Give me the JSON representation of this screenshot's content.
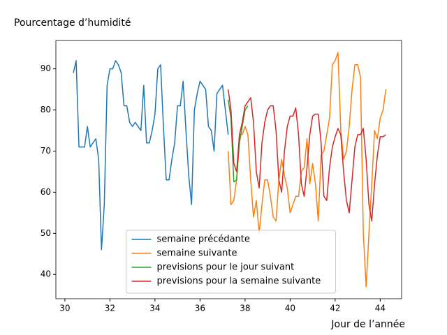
{
  "chart_data": {
    "type": "line",
    "title": "Pourcentage d’humidité",
    "x_label": "Jour de l’année",
    "xlim": [
      29.6,
      44.95
    ],
    "xticks": [
      30,
      32,
      34,
      36,
      38,
      40,
      42,
      44
    ],
    "ylim": [
      34.1,
      96.9
    ],
    "yticks": [
      40,
      50,
      60,
      70,
      80,
      90
    ],
    "grid": false,
    "legend_position": "lower center",
    "series": [
      {
        "name": "semaine précédante",
        "color": "#1f77b4",
        "x": [
          30.375,
          30.5,
          30.625,
          30.75,
          30.875,
          31,
          31.125,
          31.25,
          31.375,
          31.5,
          31.625,
          31.75,
          31.875,
          32,
          32.125,
          32.25,
          32.375,
          32.5,
          32.625,
          32.75,
          32.875,
          33,
          33.125,
          33.25,
          33.375,
          33.5,
          33.625,
          33.75,
          33.875,
          34,
          34.125,
          34.25,
          34.375,
          34.5,
          34.625,
          34.75,
          34.875,
          35,
          35.125,
          35.25,
          35.375,
          35.5,
          35.625,
          35.75,
          35.875,
          36,
          36.125,
          36.25,
          36.375,
          36.5,
          36.625,
          36.75,
          36.875,
          37,
          37.125,
          37.25
        ],
        "values": [
          89,
          92,
          71,
          71,
          71,
          76,
          71,
          72,
          73,
          68,
          46,
          57,
          86,
          90,
          90,
          92,
          91,
          89,
          81,
          81,
          77,
          76,
          77,
          76,
          75,
          86,
          72,
          72,
          75,
          79,
          90,
          91,
          76,
          63,
          63,
          68,
          72,
          81,
          81,
          87,
          75,
          64,
          57,
          80,
          84,
          87,
          86,
          85,
          76,
          75,
          70,
          84,
          85,
          86,
          80,
          74
        ]
      },
      {
        "name": "semaine suivante",
        "color": "#ff7f0e",
        "x": [
          37.25,
          37.375,
          37.5,
          37.625,
          37.75,
          37.875,
          38,
          38.125,
          38.25,
          38.375,
          38.5,
          38.625,
          38.75,
          38.875,
          39,
          39.125,
          39.25,
          39.375,
          39.5,
          39.625,
          39.75,
          39.875,
          40,
          40.125,
          40.25,
          40.375,
          40.5,
          40.625,
          40.75,
          40.875,
          41,
          41.125,
          41.25,
          41.375,
          41.5,
          41.625,
          41.75,
          41.875,
          42,
          42.125,
          42.25,
          42.375,
          42.5,
          42.625,
          42.75,
          42.875,
          43,
          43.125,
          43.25,
          43.375,
          43.5,
          43.625,
          43.75,
          43.875,
          44,
          44.125,
          44.25
        ],
        "values": [
          70,
          57,
          58,
          63,
          74,
          74,
          76,
          74,
          63,
          54,
          58,
          50,
          57,
          63,
          63,
          59,
          54,
          53,
          63,
          68,
          64,
          61,
          55,
          57,
          59,
          59,
          65,
          66,
          73,
          62,
          67,
          62,
          53,
          69,
          70,
          74,
          78,
          91,
          92,
          94,
          75,
          68,
          70,
          76,
          85,
          91,
          91,
          88,
          50,
          37,
          50,
          62,
          75,
          73,
          78,
          80,
          85
        ]
      },
      {
        "name": "previsions pour le jour suivant",
        "color": "#2ca02c",
        "x": [
          37.25,
          37.375,
          37.5,
          37.625,
          37.75,
          37.875,
          38,
          38.125
        ],
        "values": [
          82.5,
          78,
          62.5,
          63,
          72,
          76,
          80,
          81
        ]
      },
      {
        "name": "previsions pour la semaine suivante",
        "color": "#d62728",
        "x": [
          37.25,
          37.375,
          37.5,
          37.625,
          37.75,
          37.875,
          38,
          38.125,
          38.25,
          38.375,
          38.5,
          38.625,
          38.75,
          38.875,
          39,
          39.125,
          39.25,
          39.375,
          39.5,
          39.625,
          39.75,
          39.875,
          40,
          40.125,
          40.25,
          40.375,
          40.5,
          40.625,
          40.75,
          40.875,
          41,
          41.125,
          41.25,
          41.375,
          41.5,
          41.625,
          41.75,
          41.875,
          42,
          42.125,
          42.25,
          42.375,
          42.5,
          42.625,
          42.75,
          42.875,
          43,
          43.125,
          43.25,
          43.375,
          43.5,
          43.625,
          43.75,
          43.875,
          44,
          44.125,
          44.25
        ],
        "values": [
          85,
          80,
          67,
          65,
          74,
          77,
          81,
          82,
          83,
          77,
          65,
          61,
          72,
          77,
          80,
          81,
          81,
          75,
          63,
          60,
          70,
          76,
          78.5,
          78.5,
          80.5,
          74,
          62,
          59,
          66,
          74,
          78.5,
          79,
          79,
          72,
          59,
          58,
          66,
          71,
          73.5,
          75.5,
          74,
          65,
          58,
          55,
          63,
          71,
          74,
          74,
          75.5,
          68,
          57,
          53,
          62,
          69,
          73.5,
          73.5,
          74
        ]
      }
    ]
  }
}
